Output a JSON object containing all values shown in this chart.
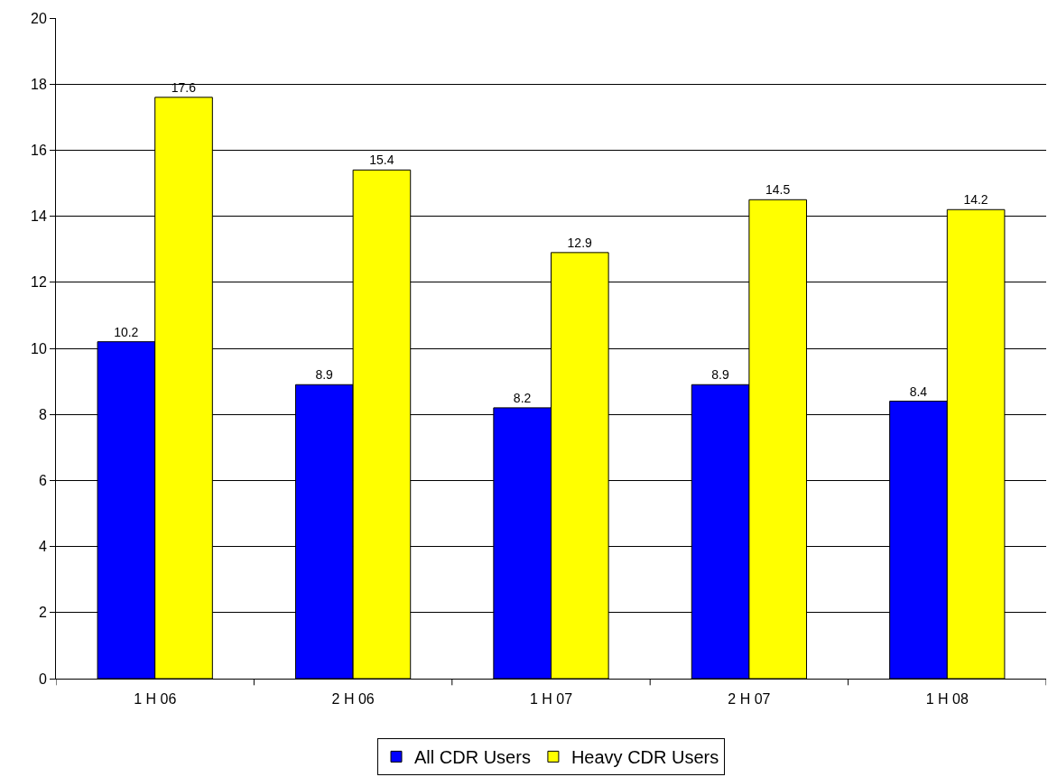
{
  "chart_data": {
    "type": "bar",
    "categories": [
      "1 H 06",
      "2 H 06",
      "1 H 07",
      "2 H 07",
      "1 H 08"
    ],
    "series": [
      {
        "name": "All CDR Users",
        "color": "#0000ff",
        "values": [
          10.2,
          8.9,
          8.2,
          8.9,
          8.4
        ]
      },
      {
        "name": "Heavy CDR Users",
        "color": "#ffff00",
        "values": [
          17.6,
          15.4,
          12.9,
          14.5,
          14.2
        ]
      }
    ],
    "ylim": [
      0,
      20
    ],
    "yticks": [
      0,
      2,
      4,
      6,
      8,
      10,
      12,
      14,
      16,
      18,
      20
    ],
    "grid": "y",
    "legend": "bottom",
    "data_labels": true
  }
}
